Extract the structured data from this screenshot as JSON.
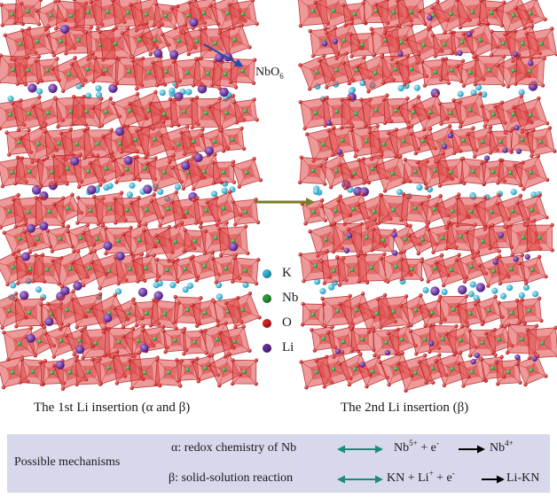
{
  "left_caption": "The 1st Li insertion (α and β)",
  "right_caption": "The 2nd Li insertion (β)",
  "nbo6_label": {
    "base": "NbO",
    "sub": "6"
  },
  "legend": [
    {
      "label": "K",
      "color": "#33b5d6"
    },
    {
      "label": "Nb",
      "color": "#2e9a3a"
    },
    {
      "label": "O",
      "color": "#d42020"
    },
    {
      "label": "Li",
      "color": "#6a2a9a"
    }
  ],
  "colors": {
    "octahedron": "#e04545",
    "octahedron_edge": "#b01818",
    "main_arrow": "#7a7a2a",
    "double_arrow": "#1f8a78",
    "nbo6_arrow": "#2a49a8",
    "mechanism_bg": "#d8d8ec"
  },
  "mechanisms": {
    "title": "Possible mechanisms",
    "alpha": {
      "text": "α: redox chemistry of Nb",
      "lhs": {
        "a": "Nb",
        "a_sup": "5+",
        "plus": " + e",
        "e_sup": "-"
      },
      "rhs": {
        "a": "Nb",
        "a_sup": "4+"
      }
    },
    "beta": {
      "text": "β: solid-solution reaction",
      "lhs": {
        "a": "KN + Li",
        "a_sup": "+",
        "plus": " + e",
        "e_sup": "-"
      },
      "rhs": {
        "a": "Li-KN"
      }
    }
  }
}
